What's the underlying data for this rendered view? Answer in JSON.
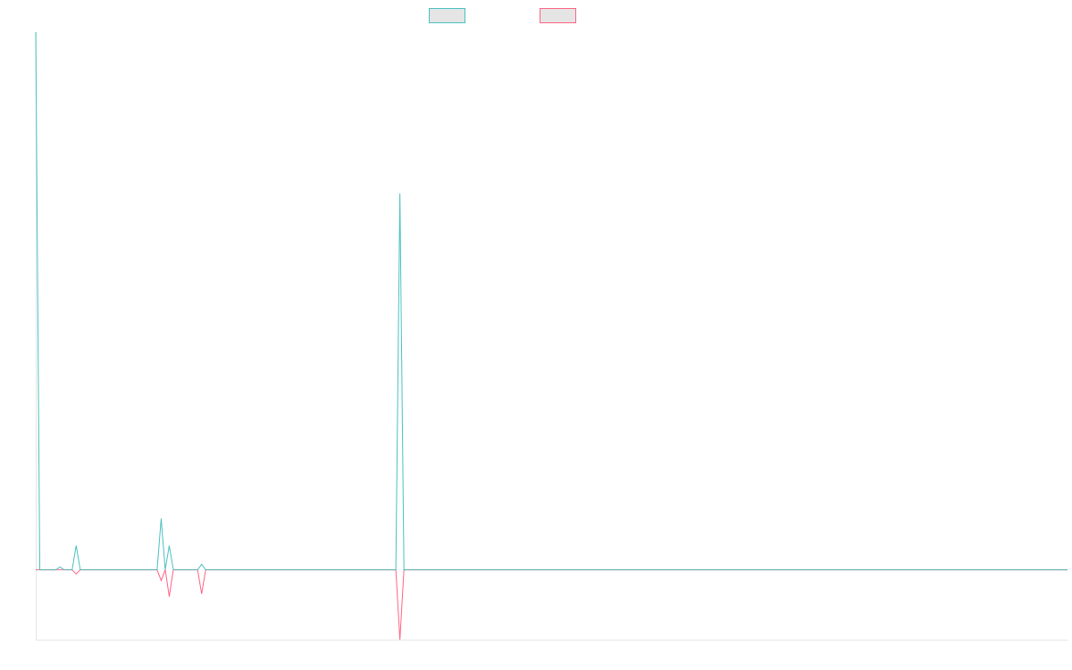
{
  "chart_data": {
    "type": "line",
    "title": "",
    "xlabel": "",
    "ylabel": "",
    "grid": false,
    "legend_position": "top",
    "point_count": 256,
    "ylim": [
      -1.3,
      10
    ],
    "series": [
      {
        "name": "",
        "color": "#4bc0c0",
        "legend_fill": "#e5e5e5",
        "values_sparse": [
          [
            0,
            10
          ],
          [
            6,
            0.05
          ],
          [
            10,
            0.45
          ],
          [
            31,
            0.95
          ],
          [
            33,
            0.45
          ],
          [
            41,
            0.1
          ],
          [
            90,
            7.0
          ]
        ]
      },
      {
        "name": "",
        "color": "#ff6384",
        "legend_fill": "#e5e5e5",
        "values_sparse": [
          [
            10,
            -0.08
          ],
          [
            31,
            -0.2
          ],
          [
            33,
            -0.5
          ],
          [
            41,
            -0.45
          ],
          [
            90,
            -1.3
          ]
        ]
      }
    ]
  }
}
